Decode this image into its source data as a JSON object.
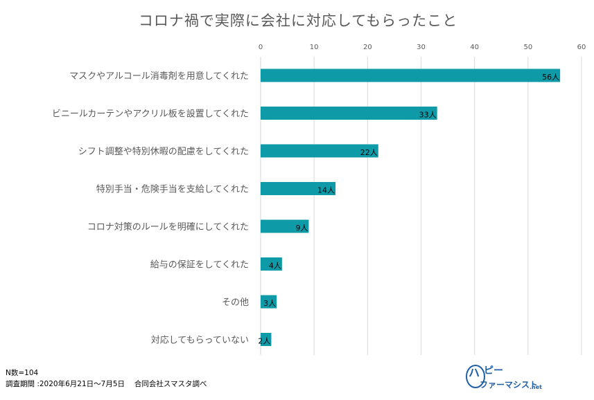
{
  "chart_data": {
    "type": "bar",
    "orientation": "horizontal",
    "title": "コロナ禍で実際に会社に対応してもらったこと",
    "categories": [
      "マスクやアルコール消毒剤を用意してくれた",
      "ビニールカーテンやアクリル板を設置してくれた",
      "シフト調整や特別休暇の配慮をしてくれた",
      "特別手当・危険手当を支給してくれた",
      "コロナ対策のルールを明確にしてくれた",
      "給与の保証をしてくれた",
      "その他",
      "対応してもらっていない"
    ],
    "values": [
      56,
      33,
      22,
      14,
      9,
      4,
      3,
      2
    ],
    "value_suffix": "人",
    "xlim": [
      0,
      60
    ],
    "xticks": [
      0,
      10,
      20,
      30,
      40,
      50,
      60
    ],
    "axis_position": "top",
    "grid": true,
    "bar_color": "#0e9aa7",
    "grid_color": "#d9d9d9"
  },
  "footer": {
    "n_label": "N数=104",
    "survey_note": "調査期間 :2020年6月21日～7月5日　 合同会社スマスタ調べ"
  },
  "logo": {
    "text_top": "ハピー",
    "text_bottom": "ファーマシスト",
    "suffix": ".net"
  }
}
